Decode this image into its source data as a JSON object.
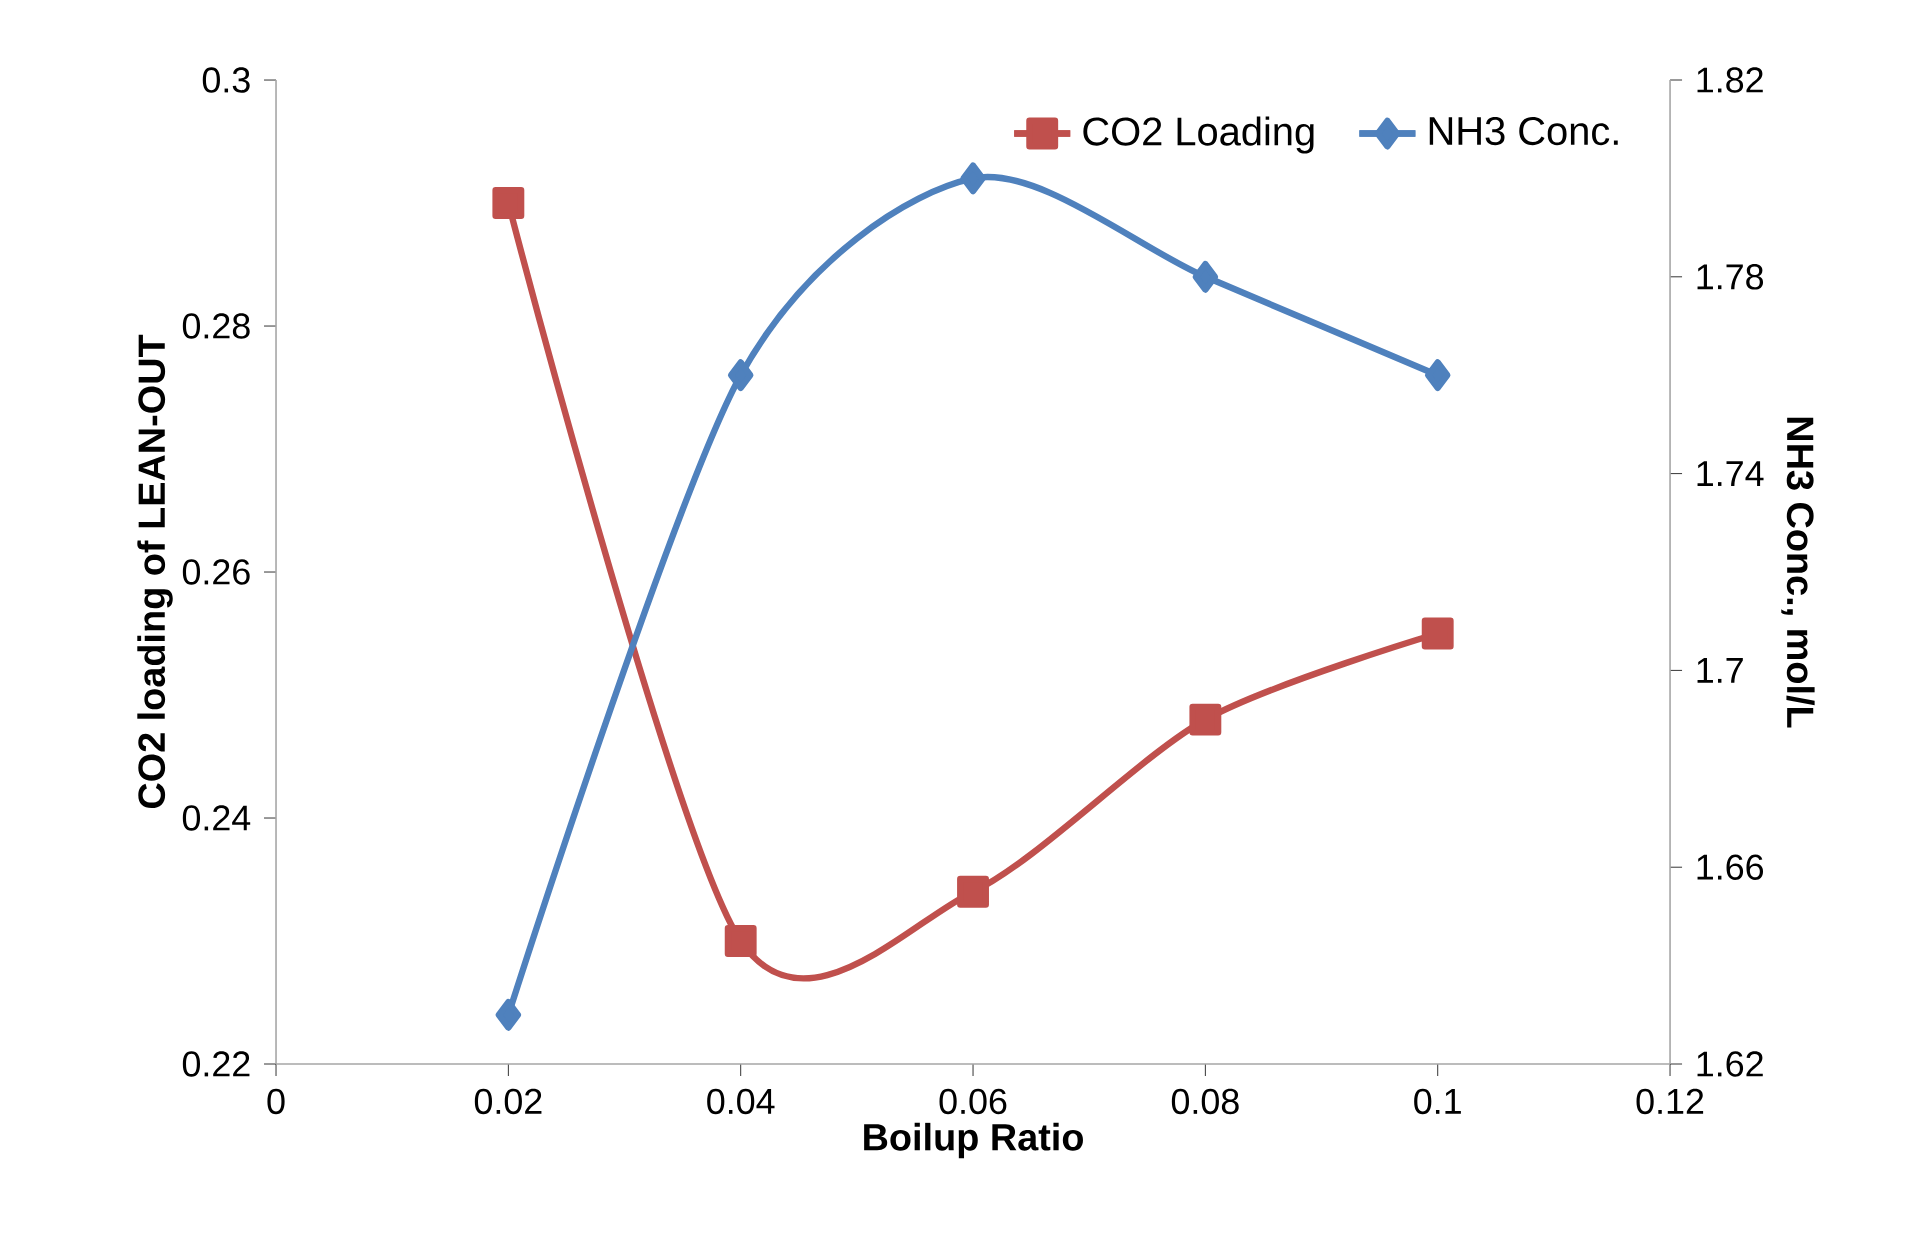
{
  "chart_data": {
    "type": "line",
    "xlabel": "Boilup Ratio",
    "ylabel": "CO2 loading of LEAN-OUT",
    "y2label": "NH3 Conc., mol/L",
    "x": [
      0.02,
      0.04,
      0.06,
      0.08,
      0.1
    ],
    "series": [
      {
        "name": "CO2 Loading",
        "color": "#c0504d",
        "values": [
          0.29,
          0.23,
          0.234,
          0.248,
          0.255
        ],
        "marker": "square"
      },
      {
        "name": "NH3 Conc.",
        "color": "#4f81bd",
        "values": [
          1.63,
          1.76,
          1.8,
          1.78,
          1.76
        ],
        "marker": "diamond",
        "axis": "y2"
      }
    ],
    "xlim": [
      0,
      0.12
    ],
    "xticks": [
      0,
      0.02,
      0.04,
      0.06,
      0.08,
      0.1,
      0.12
    ],
    "ylim": [
      0.22,
      0.3
    ],
    "yticks": [
      0.22,
      0.24,
      0.26,
      0.28,
      0.3
    ],
    "y2lim": [
      1.62,
      1.82
    ],
    "y2ticks": [
      1.62,
      1.66,
      1.7,
      1.74,
      1.78,
      1.82
    ],
    "grid": false,
    "legend": "top right",
    "line_style": "solid"
  }
}
